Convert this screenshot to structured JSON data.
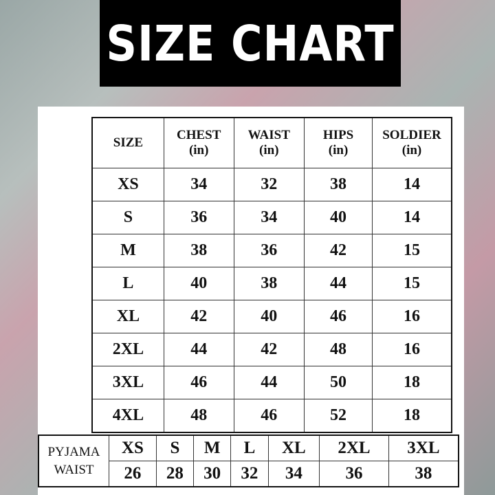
{
  "banner": {
    "title": "SIZE CHART",
    "background": "#000000",
    "color": "#ffffff"
  },
  "size_table": {
    "headers": [
      {
        "label": "SIZE",
        "unit": ""
      },
      {
        "label": "CHEST",
        "unit": "(in)"
      },
      {
        "label": "WAIST",
        "unit": "(in)"
      },
      {
        "label": "HIPS",
        "unit": "(in)"
      },
      {
        "label": "SOLDIER",
        "unit": "(in)"
      }
    ],
    "rows": [
      [
        "XS",
        "34",
        "32",
        "38",
        "14"
      ],
      [
        "S",
        "36",
        "34",
        "40",
        "14"
      ],
      [
        "M",
        "38",
        "36",
        "42",
        "15"
      ],
      [
        "L",
        "40",
        "38",
        "44",
        "15"
      ],
      [
        "XL",
        "42",
        "40",
        "46",
        "16"
      ],
      [
        "2XL",
        "44",
        "42",
        "48",
        "16"
      ],
      [
        "3XL",
        "46",
        "44",
        "50",
        "18"
      ],
      [
        "4XL",
        "48",
        "46",
        "52",
        "18"
      ]
    ]
  },
  "pyjama_table": {
    "label_line1": "PYJAMA",
    "label_line2": "WAIST",
    "sizes": [
      "XS",
      "S",
      "M",
      "L",
      "XL",
      "2XL",
      "3XL"
    ],
    "waists": [
      "26",
      "28",
      "30",
      "32",
      "34",
      "36",
      "38"
    ]
  }
}
